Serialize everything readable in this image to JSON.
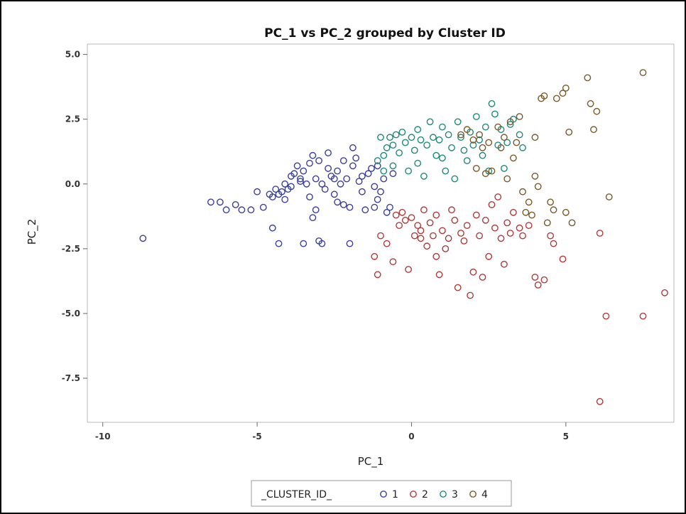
{
  "chart_data": {
    "type": "scatter",
    "title": "PC_1 vs PC_2 grouped by Cluster ID",
    "xlabel": "PC_1",
    "ylabel": "PC_2",
    "xlim": [
      -10.5,
      8.5
    ],
    "ylim": [
      -9.2,
      5.4
    ],
    "x_ticks": [
      -10,
      -5,
      0,
      5
    ],
    "y_ticks": [
      5.0,
      2.5,
      0.0,
      -2.5,
      -5.0,
      -7.5
    ],
    "x_tick_labels": [
      "-10",
      "-5",
      "0",
      "5"
    ],
    "y_tick_labels": [
      "5.0",
      "2.5",
      "0.0",
      "-2.5",
      "-5.0",
      "-7.5"
    ],
    "grid": false,
    "marker": "open-circle",
    "legend": {
      "title": "_CLUSTER_ID_",
      "position": "bottom",
      "entries": [
        "1",
        "2",
        "3",
        "4"
      ]
    },
    "series": [
      {
        "name": "1",
        "color": "#3b3f9c",
        "points": [
          [
            -8.7,
            -2.1
          ],
          [
            -6.5,
            -0.7
          ],
          [
            -6.2,
            -0.7
          ],
          [
            -6.0,
            -1.0
          ],
          [
            -5.7,
            -0.8
          ],
          [
            -5.5,
            -1.0
          ],
          [
            -5.2,
            -1.0
          ],
          [
            -5.0,
            -0.3
          ],
          [
            -4.8,
            -0.9
          ],
          [
            -4.6,
            -0.4
          ],
          [
            -4.5,
            -0.5
          ],
          [
            -4.4,
            -0.2
          ],
          [
            -4.3,
            -0.4
          ],
          [
            -4.2,
            -0.3
          ],
          [
            -4.1,
            0.0
          ],
          [
            -4.0,
            -0.2
          ],
          [
            -3.9,
            0.3
          ],
          [
            -4.1,
            -0.6
          ],
          [
            -4.5,
            -1.7
          ],
          [
            -4.3,
            -2.3
          ],
          [
            -3.7,
            0.7
          ],
          [
            -3.6,
            0.1
          ],
          [
            -3.5,
            0.5
          ],
          [
            -3.4,
            0.0
          ],
          [
            -3.3,
            0.8
          ],
          [
            -3.2,
            1.1
          ],
          [
            -3.1,
            0.2
          ],
          [
            -3.0,
            0.9
          ],
          [
            -2.9,
            0.0
          ],
          [
            -2.8,
            -0.2
          ],
          [
            -2.7,
            0.6
          ],
          [
            -2.6,
            0.3
          ],
          [
            -2.5,
            -0.4
          ],
          [
            -2.4,
            0.5
          ],
          [
            -2.3,
            0.0
          ],
          [
            -2.2,
            -0.8
          ],
          [
            -2.1,
            0.2
          ],
          [
            -2.0,
            -0.9
          ],
          [
            -1.9,
            1.4
          ],
          [
            -1.8,
            1.0
          ],
          [
            -1.7,
            0.1
          ],
          [
            -1.6,
            -0.3
          ],
          [
            -1.5,
            -1.0
          ],
          [
            -1.4,
            0.4
          ],
          [
            -1.3,
            0.6
          ],
          [
            -1.2,
            -0.1
          ],
          [
            -1.1,
            0.7
          ],
          [
            -1.0,
            -0.3
          ],
          [
            -0.9,
            0.2
          ],
          [
            -0.8,
            -1.1
          ],
          [
            -0.6,
            0.4
          ],
          [
            -3.1,
            -1.0
          ],
          [
            -3.2,
            -1.3
          ],
          [
            -3.0,
            -2.2
          ],
          [
            -2.9,
            -2.3
          ],
          [
            -3.5,
            -2.3
          ],
          [
            -2.0,
            -2.3
          ],
          [
            -3.3,
            -0.5
          ],
          [
            -2.4,
            -0.7
          ],
          [
            -1.2,
            -0.9
          ],
          [
            -3.8,
            0.4
          ],
          [
            -3.6,
            0.2
          ],
          [
            -2.7,
            1.2
          ],
          [
            -2.2,
            0.9
          ],
          [
            -1.9,
            0.7
          ],
          [
            -1.6,
            0.3
          ],
          [
            -1.1,
            -0.6
          ],
          [
            -0.7,
            -0.9
          ],
          [
            -2.5,
            0.2
          ],
          [
            -3.9,
            -0.1
          ]
        ]
      },
      {
        "name": "2",
        "color": "#b03a3a",
        "points": [
          [
            -1.2,
            -2.8
          ],
          [
            -1.1,
            -3.5
          ],
          [
            -1.0,
            -2.0
          ],
          [
            -0.8,
            -2.3
          ],
          [
            -0.6,
            -3.0
          ],
          [
            -0.5,
            -1.2
          ],
          [
            -0.4,
            -1.6
          ],
          [
            -0.3,
            -1.1
          ],
          [
            -0.2,
            -1.4
          ],
          [
            -0.1,
            -3.3
          ],
          [
            0.0,
            -1.3
          ],
          [
            0.1,
            -2.0
          ],
          [
            0.2,
            -1.6
          ],
          [
            0.3,
            -1.8
          ],
          [
            0.4,
            -1.0
          ],
          [
            0.5,
            -2.4
          ],
          [
            0.6,
            -1.5
          ],
          [
            0.7,
            -2.0
          ],
          [
            0.8,
            -1.2
          ],
          [
            0.9,
            -3.5
          ],
          [
            1.0,
            -1.8
          ],
          [
            1.2,
            -2.1
          ],
          [
            1.3,
            -1.0
          ],
          [
            1.4,
            -1.4
          ],
          [
            1.5,
            -4.0
          ],
          [
            1.6,
            -1.9
          ],
          [
            1.7,
            -2.2
          ],
          [
            1.8,
            -1.6
          ],
          [
            1.9,
            -4.3
          ],
          [
            2.0,
            -3.4
          ],
          [
            2.1,
            -1.2
          ],
          [
            2.2,
            -2.0
          ],
          [
            2.3,
            -3.6
          ],
          [
            2.4,
            -1.4
          ],
          [
            2.5,
            -2.8
          ],
          [
            2.6,
            -0.8
          ],
          [
            2.7,
            -1.7
          ],
          [
            2.8,
            -0.5
          ],
          [
            2.9,
            -2.1
          ],
          [
            3.0,
            -3.1
          ],
          [
            3.1,
            -1.5
          ],
          [
            3.2,
            -1.9
          ],
          [
            3.3,
            -1.1
          ],
          [
            3.5,
            -1.7
          ],
          [
            3.6,
            -2.0
          ],
          [
            3.8,
            -1.6
          ],
          [
            4.0,
            -3.6
          ],
          [
            4.1,
            -3.9
          ],
          [
            4.3,
            -3.7
          ],
          [
            4.5,
            -2.0
          ],
          [
            4.6,
            -2.3
          ],
          [
            4.9,
            -2.9
          ],
          [
            6.1,
            -1.9
          ],
          [
            6.3,
            -5.1
          ],
          [
            6.1,
            -8.4
          ],
          [
            7.5,
            -5.1
          ],
          [
            8.2,
            -4.2
          ],
          [
            0.3,
            -2.1
          ],
          [
            0.8,
            -2.8
          ],
          [
            1.1,
            -2.5
          ]
        ]
      },
      {
        "name": "3",
        "color": "#1f8a7a",
        "points": [
          [
            -1.1,
            0.9
          ],
          [
            -1.0,
            1.8
          ],
          [
            -0.9,
            0.5
          ],
          [
            -0.8,
            1.4
          ],
          [
            -0.7,
            1.8
          ],
          [
            -0.6,
            0.7
          ],
          [
            -0.5,
            1.9
          ],
          [
            -0.4,
            1.2
          ],
          [
            -0.3,
            2.0
          ],
          [
            -0.2,
            1.6
          ],
          [
            -0.1,
            0.5
          ],
          [
            0.0,
            1.8
          ],
          [
            0.1,
            1.3
          ],
          [
            0.2,
            2.1
          ],
          [
            0.3,
            1.7
          ],
          [
            0.4,
            0.3
          ],
          [
            0.5,
            1.5
          ],
          [
            0.6,
            2.4
          ],
          [
            0.7,
            1.8
          ],
          [
            0.8,
            1.1
          ],
          [
            0.9,
            1.7
          ],
          [
            1.0,
            2.2
          ],
          [
            1.1,
            0.5
          ],
          [
            1.2,
            1.9
          ],
          [
            1.3,
            1.4
          ],
          [
            1.4,
            0.2
          ],
          [
            1.5,
            2.4
          ],
          [
            1.6,
            1.8
          ],
          [
            1.7,
            1.3
          ],
          [
            1.8,
            0.9
          ],
          [
            1.9,
            2.0
          ],
          [
            2.0,
            1.5
          ],
          [
            2.1,
            2.6
          ],
          [
            2.2,
            1.7
          ],
          [
            2.3,
            1.1
          ],
          [
            2.4,
            2.2
          ],
          [
            2.5,
            0.5
          ],
          [
            2.6,
            3.1
          ],
          [
            2.7,
            2.7
          ],
          [
            2.8,
            1.5
          ],
          [
            2.9,
            2.1
          ],
          [
            3.0,
            0.6
          ],
          [
            3.1,
            1.6
          ],
          [
            3.2,
            2.3
          ],
          [
            3.3,
            2.5
          ],
          [
            3.5,
            1.9
          ],
          [
            3.6,
            1.4
          ],
          [
            -0.9,
            1.1
          ],
          [
            -0.6,
            1.5
          ],
          [
            0.2,
            0.8
          ],
          [
            1.0,
            1.0
          ]
        ]
      },
      {
        "name": "4",
        "color": "#7a5a2a",
        "points": [
          [
            1.6,
            1.9
          ],
          [
            1.8,
            2.1
          ],
          [
            2.0,
            1.7
          ],
          [
            2.1,
            0.6
          ],
          [
            2.2,
            1.9
          ],
          [
            2.3,
            1.4
          ],
          [
            2.4,
            0.4
          ],
          [
            2.5,
            1.6
          ],
          [
            2.6,
            0.5
          ],
          [
            2.8,
            2.2
          ],
          [
            2.9,
            1.4
          ],
          [
            3.0,
            1.8
          ],
          [
            3.1,
            0.2
          ],
          [
            3.2,
            2.4
          ],
          [
            3.3,
            1.0
          ],
          [
            3.4,
            1.6
          ],
          [
            3.6,
            -0.3
          ],
          [
            3.7,
            -1.1
          ],
          [
            3.8,
            -0.7
          ],
          [
            4.0,
            1.8
          ],
          [
            4.0,
            0.3
          ],
          [
            4.1,
            -0.1
          ],
          [
            4.2,
            3.3
          ],
          [
            4.3,
            3.4
          ],
          [
            4.4,
            -1.5
          ],
          [
            4.5,
            -0.7
          ],
          [
            4.6,
            -1.0
          ],
          [
            4.7,
            3.3
          ],
          [
            4.9,
            3.5
          ],
          [
            5.0,
            3.7
          ],
          [
            5.0,
            -1.1
          ],
          [
            5.1,
            2.0
          ],
          [
            5.2,
            -1.5
          ],
          [
            5.7,
            4.1
          ],
          [
            5.8,
            3.1
          ],
          [
            5.9,
            2.1
          ],
          [
            6.0,
            2.8
          ],
          [
            6.4,
            -0.5
          ],
          [
            7.5,
            4.3
          ],
          [
            3.9,
            -1.2
          ],
          [
            3.5,
            2.6
          ]
        ]
      }
    ]
  }
}
